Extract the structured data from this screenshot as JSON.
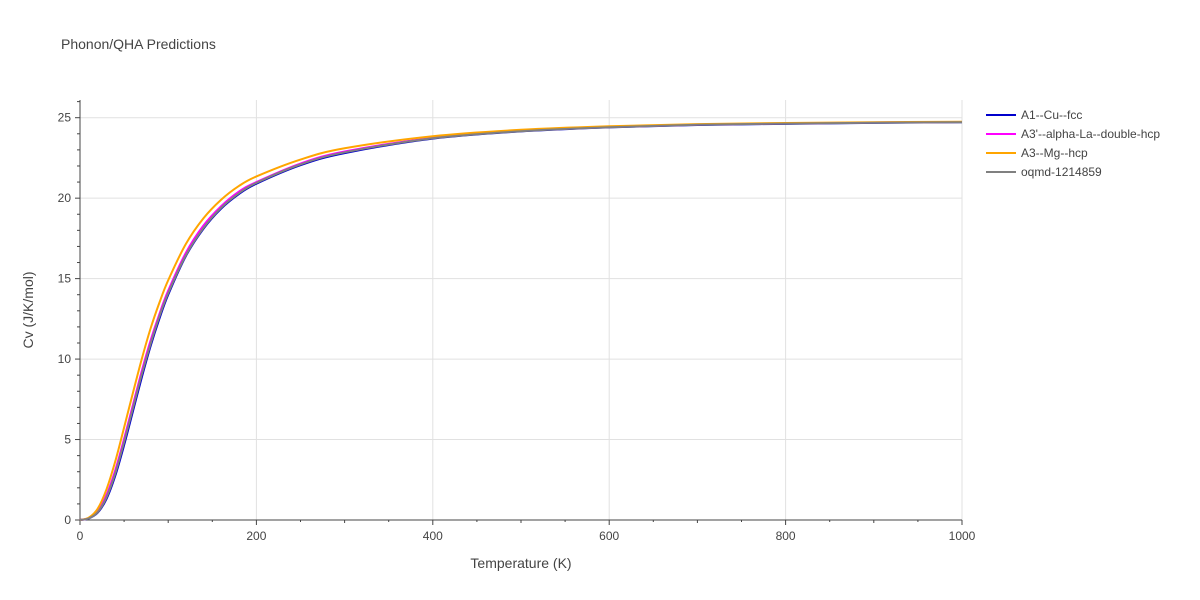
{
  "chart_data": {
    "type": "line",
    "title": "Phonon/QHA Predictions",
    "xlabel": "Temperature (K)",
    "ylabel": "Cv (J/K/mol)",
    "xlim": [
      0,
      1000
    ],
    "ylim": [
      0,
      26.1
    ],
    "xticks": [
      0,
      200,
      400,
      600,
      800,
      1000
    ],
    "xtick_labels": [
      "0",
      "200",
      "400",
      "600",
      "800",
      "1000"
    ],
    "yticks": [
      0,
      5,
      10,
      15,
      20,
      25
    ],
    "ytick_labels": [
      "0",
      "5",
      "10",
      "15",
      "20",
      "25"
    ],
    "grid": true,
    "legend_position": "top-right, outside plot",
    "x": [
      0,
      10,
      20,
      30,
      40,
      50,
      60,
      70,
      80,
      90,
      100,
      120,
      140,
      160,
      180,
      200,
      250,
      300,
      400,
      500,
      600,
      700,
      800,
      900,
      1000
    ],
    "series": [
      {
        "name": "A1--Cu--fcc",
        "color": "#0000cc",
        "values": [
          0,
          0.1,
          0.45,
          1.3,
          2.75,
          4.65,
          6.75,
          8.85,
          10.8,
          12.5,
          14.0,
          16.4,
          18.1,
          19.35,
          20.25,
          20.9,
          22.05,
          22.8,
          23.7,
          24.15,
          24.4,
          24.55,
          24.62,
          24.68,
          24.72
        ]
      },
      {
        "name": "A3'--alpha-La--double-hcp",
        "color": "#ff00ff",
        "values": [
          0,
          0.12,
          0.55,
          1.55,
          3.1,
          5.05,
          7.15,
          9.25,
          11.15,
          12.8,
          14.25,
          16.6,
          18.3,
          19.5,
          20.4,
          21.0,
          22.15,
          22.9,
          23.75,
          24.18,
          24.42,
          24.57,
          24.64,
          24.7,
          24.73
        ]
      },
      {
        "name": "A3--Mg--hcp",
        "color": "#ffa500",
        "values": [
          0,
          0.15,
          0.7,
          1.9,
          3.65,
          5.75,
          7.9,
          10.0,
          11.9,
          13.5,
          14.9,
          17.15,
          18.75,
          19.9,
          20.75,
          21.35,
          22.4,
          23.1,
          23.85,
          24.25,
          24.47,
          24.6,
          24.67,
          24.72,
          24.75
        ]
      },
      {
        "name": "oqmd-1214859",
        "color": "#808080",
        "values": [
          0,
          0.1,
          0.48,
          1.4,
          2.9,
          4.85,
          6.95,
          9.05,
          10.95,
          12.65,
          14.1,
          16.45,
          18.15,
          19.4,
          20.3,
          20.95,
          22.1,
          22.85,
          23.72,
          24.16,
          24.41,
          24.56,
          24.63,
          24.69,
          24.72
        ]
      }
    ]
  }
}
